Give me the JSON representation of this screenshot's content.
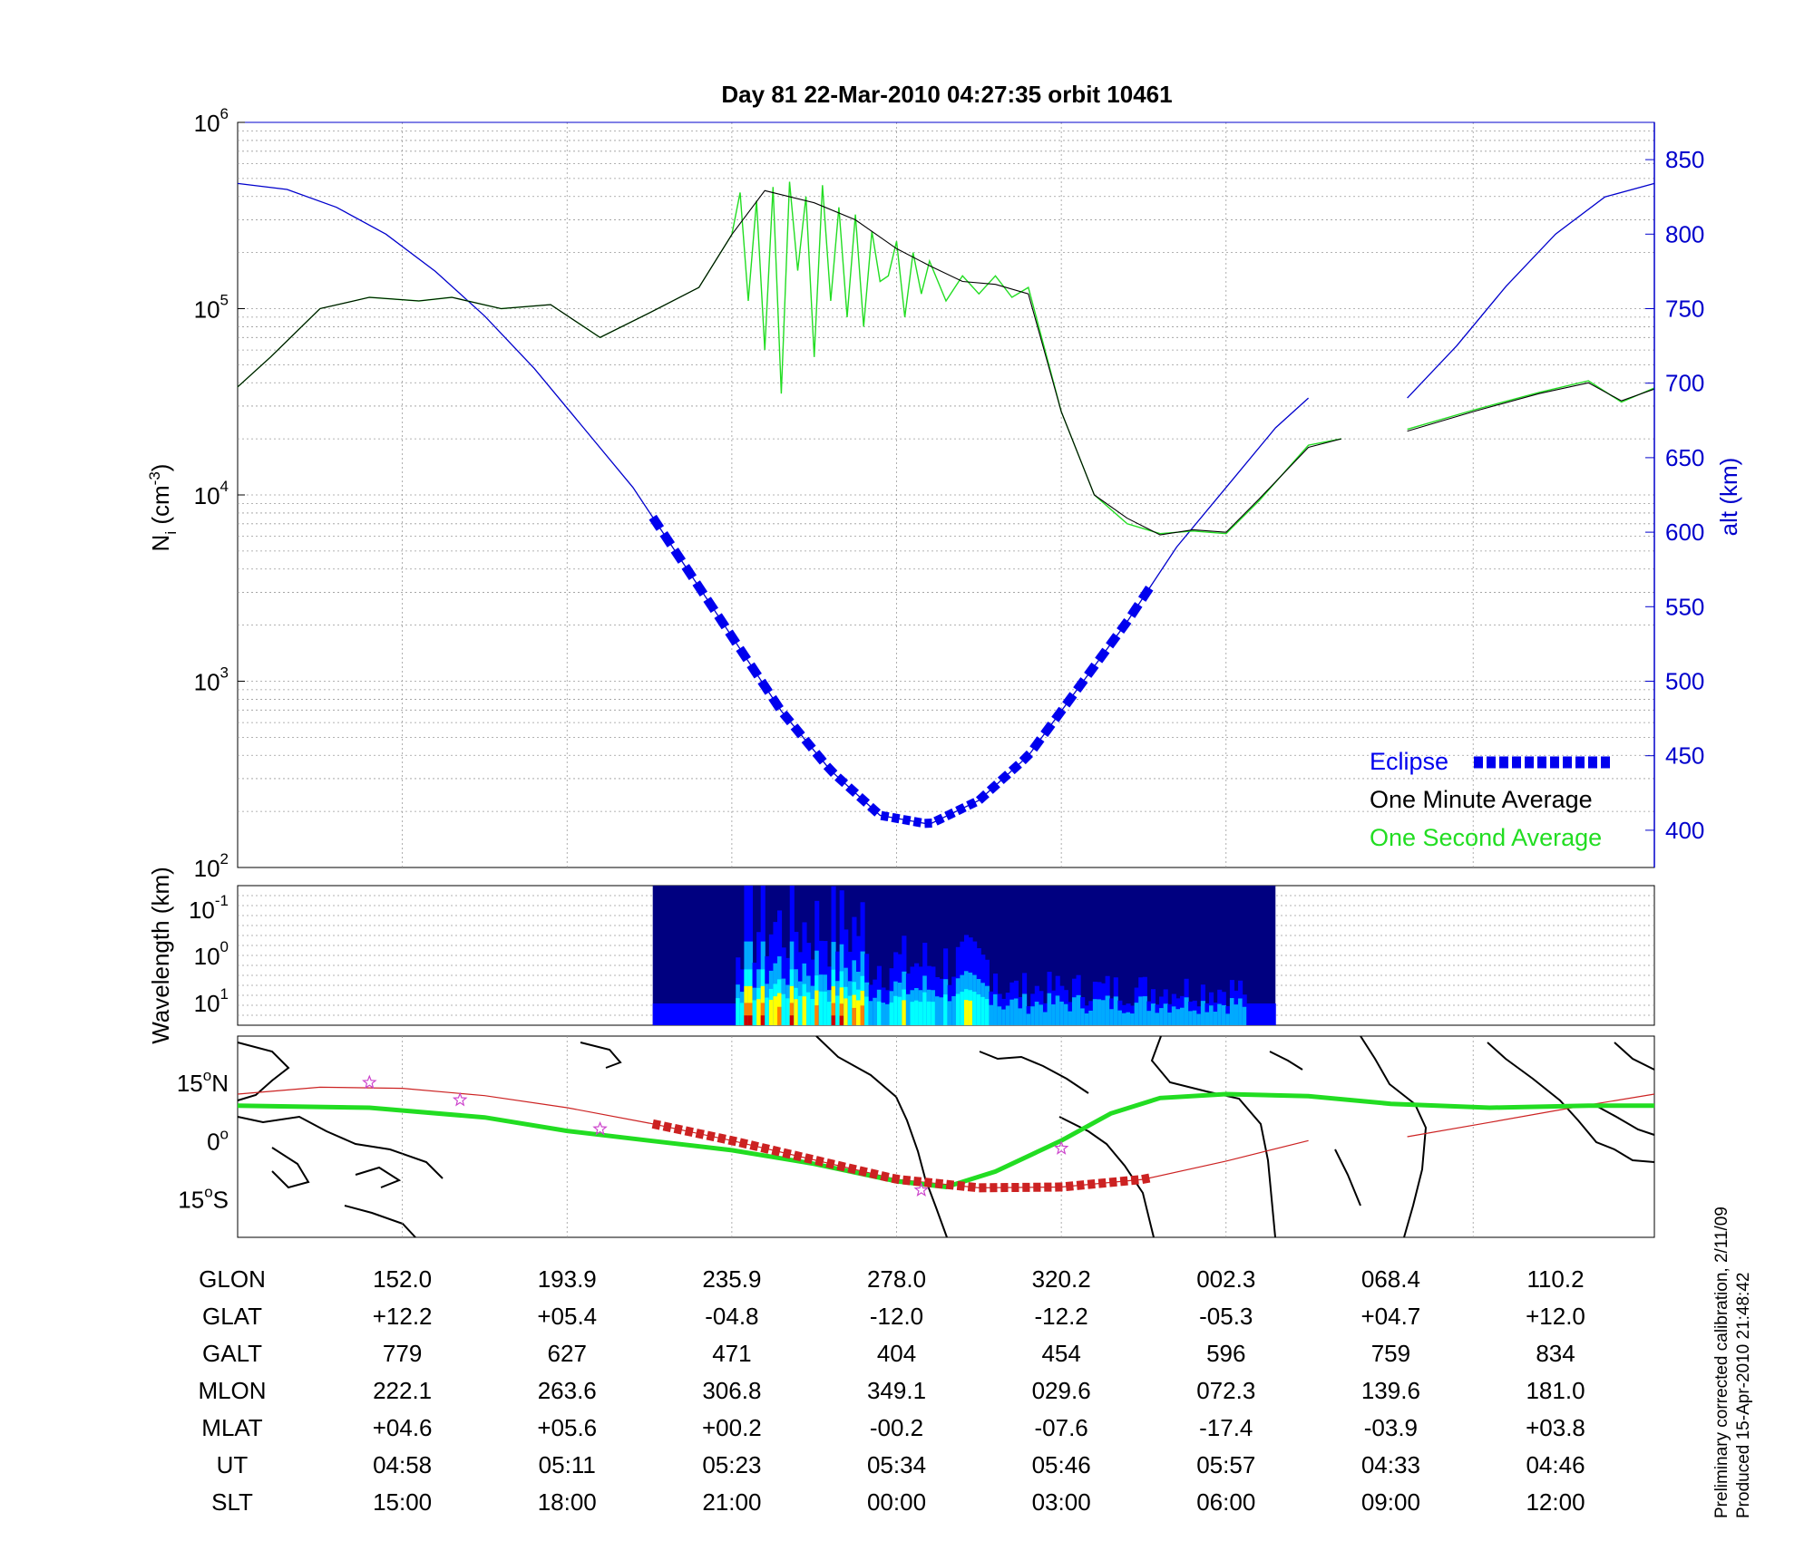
{
  "title": "Day 81  22-Mar-2010 04:27:35   orbit 10461",
  "colors": {
    "one_second": "#22dd22",
    "one_minute": "#000000",
    "altitude": "#0000cc",
    "eclipse": "#0000ee",
    "track": "#cc2222",
    "magnetic_equator": "#22dd22",
    "stars": "#cc44cc"
  },
  "chart_data": [
    {
      "type": "line",
      "panel": "density",
      "y_label": {
        "base": "N",
        "sub": "i",
        "paren": " (cm",
        "sup": "-3",
        "close": ")"
      },
      "y_scale": "log",
      "ylim": [
        100,
        1000000
      ],
      "y_ticks": [
        {
          "base": "10",
          "exp": "2",
          "value": 100
        },
        {
          "base": "10",
          "exp": "3",
          "value": 1000
        },
        {
          "base": "10",
          "exp": "4",
          "value": 10000
        },
        {
          "base": "10",
          "exp": "5",
          "value": 100000
        },
        {
          "base": "10",
          "exp": "6",
          "value": 1000000
        }
      ],
      "y2_label": "alt (km)",
      "y2_lim": [
        375,
        875
      ],
      "y2_ticks": [
        "400",
        "450",
        "500",
        "550",
        "600",
        "650",
        "700",
        "750",
        "800",
        "850"
      ],
      "x_index_range": [
        0,
        8.6
      ],
      "grid": true,
      "legend": {
        "position": "bottom-right",
        "entries": [
          {
            "label": "Eclipse",
            "color": "#0000ee",
            "style": "thick dotted"
          },
          {
            "label": "One Minute Average",
            "color": "#000000"
          },
          {
            "label": "One Second Average",
            "color": "#22dd22"
          }
        ]
      },
      "series": [
        {
          "name": "One Minute Average",
          "x": [
            0,
            0.2,
            0.5,
            0.8,
            1.1,
            1.3,
            1.6,
            1.9,
            2.2,
            2.5,
            2.8,
            3.0,
            3.2,
            3.5,
            3.75,
            4.0,
            4.2,
            4.4,
            4.6,
            4.8,
            5.0,
            5.2,
            5.4,
            5.6,
            5.8,
            6.0,
            6.2,
            6.5,
            6.7
          ],
          "y": [
            38000,
            55000,
            100000,
            115000,
            110000,
            115000,
            100000,
            105000,
            70000,
            95000,
            130000,
            250000,
            430000,
            370000,
            300000,
            210000,
            170000,
            140000,
            135000,
            120000,
            28000,
            10000,
            7500,
            6100,
            6500,
            6300,
            9500,
            18000,
            20000
          ]
        },
        {
          "name": "One Minute Average (after gap)",
          "x": [
            7.1,
            7.5,
            7.9,
            8.2,
            8.4,
            8.6
          ],
          "y": [
            22000,
            28000,
            35000,
            40000,
            32000,
            37000
          ]
        },
        {
          "name": "One Second Average",
          "x": [
            0,
            0.2,
            0.5,
            0.8,
            1.1,
            1.3,
            1.6,
            1.9,
            2.2,
            2.5,
            2.8,
            3.0,
            3.05,
            3.1,
            3.15,
            3.2,
            3.25,
            3.3,
            3.35,
            3.4,
            3.45,
            3.5,
            3.55,
            3.6,
            3.65,
            3.7,
            3.75,
            3.8,
            3.85,
            3.9,
            3.95,
            4.0,
            4.05,
            4.1,
            4.15,
            4.2,
            4.3,
            4.4,
            4.5,
            4.6,
            4.7,
            4.8,
            5.0,
            5.2,
            5.4,
            5.6,
            5.8,
            6.0,
            6.2,
            6.5,
            6.7
          ],
          "y": [
            38000,
            55000,
            100000,
            115000,
            110000,
            115000,
            100000,
            105000,
            70000,
            95000,
            130000,
            250000,
            420000,
            110000,
            380000,
            60000,
            450000,
            35000,
            480000,
            160000,
            400000,
            55000,
            460000,
            110000,
            350000,
            90000,
            320000,
            80000,
            260000,
            140000,
            150000,
            230000,
            90000,
            200000,
            120000,
            180000,
            110000,
            150000,
            120000,
            150000,
            115000,
            130000,
            28000,
            10000,
            7000,
            6200,
            6400,
            6200,
            9300,
            18500,
            20000
          ]
        },
        {
          "name": "One Second Average (after gap)",
          "x": [
            7.1,
            7.5,
            7.9,
            8.2,
            8.4,
            8.6
          ],
          "y": [
            22500,
            28500,
            35500,
            41000,
            31500,
            37500
          ]
        },
        {
          "name": "alt (km)",
          "axis": "right",
          "x": [
            0,
            0.3,
            0.6,
            0.9,
            1.2,
            1.5,
            1.8,
            2.1,
            2.4,
            2.7,
            3.0,
            3.3,
            3.6,
            3.9,
            4.2,
            4.5,
            4.8,
            5.1,
            5.4,
            5.7,
            6.0,
            6.3,
            6.5
          ],
          "y": [
            834,
            830,
            818,
            800,
            775,
            745,
            710,
            670,
            630,
            580,
            530,
            480,
            440,
            410,
            404,
            420,
            450,
            495,
            540,
            590,
            630,
            670,
            690
          ]
        },
        {
          "name": "alt (km) (after gap)",
          "axis": "right",
          "x": [
            7.1,
            7.4,
            7.7,
            8.0,
            8.3,
            8.6
          ],
          "y": [
            690,
            725,
            765,
            800,
            825,
            834
          ]
        },
        {
          "name": "Eclipse",
          "axis": "right",
          "x_range": [
            2.52,
            5.5
          ]
        }
      ]
    },
    {
      "type": "heatmap",
      "panel": "spectrogram",
      "y_label": "Wavelength (km)",
      "y_ticks": [
        {
          "base": "10",
          "exp": "-1"
        },
        {
          "base": "10",
          "exp": "0"
        },
        {
          "base": "10",
          "exp": "1"
        }
      ],
      "x_index_range": [
        2.52,
        6.3
      ],
      "colormap": [
        "#000080",
        "#0000ff",
        "#00aaff",
        "#00ffff",
        "#ffff00",
        "#ff8000",
        "#cc0000"
      ]
    },
    {
      "type": "line",
      "panel": "map",
      "y_ticks": [
        {
          "deg": "15",
          "hemi": "N",
          "value": 15
        },
        {
          "deg": "0",
          "hemi": "",
          "value": 0
        },
        {
          "deg": "15",
          "hemi": "S",
          "value": -15
        }
      ],
      "ylim": [
        -25,
        27
      ],
      "series": [
        {
          "name": "orbit track",
          "x": [
            0,
            0.5,
            1.0,
            1.5,
            2.0,
            2.5,
            3.0,
            3.5,
            4.0,
            4.5,
            5.0,
            5.5,
            6.0,
            6.5
          ],
          "y": [
            12,
            13.8,
            13.5,
            11.6,
            8.5,
            4.5,
            0,
            -5,
            -10,
            -12.2,
            -12,
            -10,
            -5.3,
            0
          ]
        },
        {
          "name": "orbit track (after gap)",
          "x": [
            7.1,
            7.6,
            8.1,
            8.6
          ],
          "y": [
            1,
            4.7,
            8.5,
            12
          ]
        },
        {
          "name": "magnetic equator",
          "x": [
            0,
            0.8,
            1.5,
            2.0,
            2.5,
            3.0,
            3.5,
            4.0,
            4.3,
            4.6,
            5.0,
            5.3,
            5.6,
            6.0,
            6.5,
            7.0,
            7.6,
            8.2,
            8.6
          ],
          "y": [
            9,
            8.5,
            6,
            2.5,
            0,
            -2.5,
            -6,
            -10.5,
            -12,
            -8,
            0,
            7,
            11,
            12,
            11.5,
            9.5,
            8.5,
            9,
            9
          ]
        },
        {
          "name": "eclipse track",
          "x_range": [
            2.52,
            5.5
          ]
        },
        {
          "name": "stars",
          "x": [
            0.8,
            1.35,
            2.2,
            4.15,
            5.0
          ],
          "y": [
            15,
            10.5,
            3,
            -12.8,
            -2
          ]
        }
      ]
    }
  ],
  "table": {
    "row_labels": [
      "GLON",
      "GLAT",
      "GALT",
      "MLON",
      "MLAT",
      "UT",
      "SLT"
    ],
    "columns": [
      {
        "GLON": "152.0",
        "GLAT": "+12.2",
        "GALT": "779",
        "MLON": "222.1",
        "MLAT": "+04.6",
        "UT": "04:58",
        "SLT": "15:00",
        "pos": 1.0
      },
      {
        "GLON": "193.9",
        "GLAT": "+05.4",
        "GALT": "627",
        "MLON": "263.6",
        "MLAT": "+05.6",
        "UT": "05:11",
        "SLT": "18:00",
        "pos": 2.0
      },
      {
        "GLON": "235.9",
        "GLAT": "-04.8",
        "GALT": "471",
        "MLON": "306.8",
        "MLAT": "+00.2",
        "UT": "05:23",
        "SLT": "21:00",
        "pos": 3.0
      },
      {
        "GLON": "278.0",
        "GLAT": "-12.0",
        "GALT": "404",
        "MLON": "349.1",
        "MLAT": "-00.2",
        "UT": "05:34",
        "SLT": "00:00",
        "pos": 4.0
      },
      {
        "GLON": "320.2",
        "GLAT": "-12.2",
        "GALT": "454",
        "MLON": "029.6",
        "MLAT": "-07.6",
        "UT": "05:46",
        "SLT": "03:00",
        "pos": 5.0
      },
      {
        "GLON": "002.3",
        "GLAT": "-05.3",
        "GALT": "596",
        "MLON": "072.3",
        "MLAT": "-17.4",
        "UT": "05:57",
        "SLT": "06:00",
        "pos": 6.0
      },
      {
        "GLON": "068.4",
        "GLAT": "+04.7",
        "GALT": "759",
        "MLON": "139.6",
        "MLAT": "-03.9",
        "UT": "04:33",
        "SLT": "09:00",
        "pos": 7.0
      },
      {
        "GLON": "110.2",
        "GLAT": "+12.0",
        "GALT": "834",
        "MLON": "181.0",
        "MLAT": "+03.8",
        "UT": "04:46",
        "SLT": "12:00",
        "pos": 8.0
      }
    ]
  },
  "notes": {
    "line1": "Preliminary corrected calibration, 2/11/09",
    "line2": "Produced 15-Apr-2010 21:48:42"
  }
}
